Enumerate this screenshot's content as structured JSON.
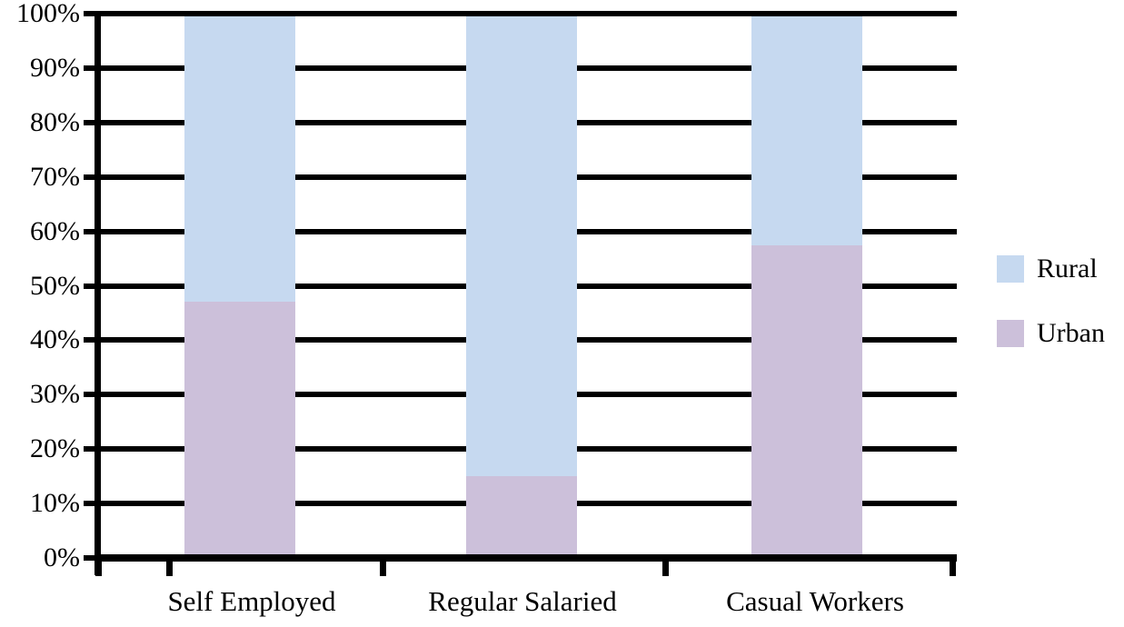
{
  "chart_data": {
    "type": "bar",
    "subtype": "stacked-100-percent-vertical",
    "title": "",
    "xlabel": "",
    "ylabel": "",
    "categories": [
      "Self Employed",
      "Regular Salaried",
      "Casual Workers"
    ],
    "series": [
      {
        "name": "Rural",
        "color": "#C6D9F0",
        "values": [
          53,
          85,
          42.5
        ]
      },
      {
        "name": "Urban",
        "color": "#CCC0DA",
        "values": [
          47,
          15,
          57.5
        ]
      }
    ],
    "stack_order_bottom_to_top": [
      "Urban",
      "Rural"
    ],
    "y_axis": {
      "min": 0,
      "max": 100,
      "step": 10,
      "tick_labels": [
        "0%",
        "10%",
        "20%",
        "30%",
        "40%",
        "50%",
        "60%",
        "70%",
        "80%",
        "90%",
        "100%"
      ]
    },
    "grid": true,
    "gridline_color": "#000000",
    "axis_color": "#000000",
    "legend": {
      "position": "right",
      "entries": [
        {
          "label": "Rural",
          "color": "#C6D9F0"
        },
        {
          "label": "Urban",
          "color": "#CCC0DA"
        }
      ]
    }
  }
}
